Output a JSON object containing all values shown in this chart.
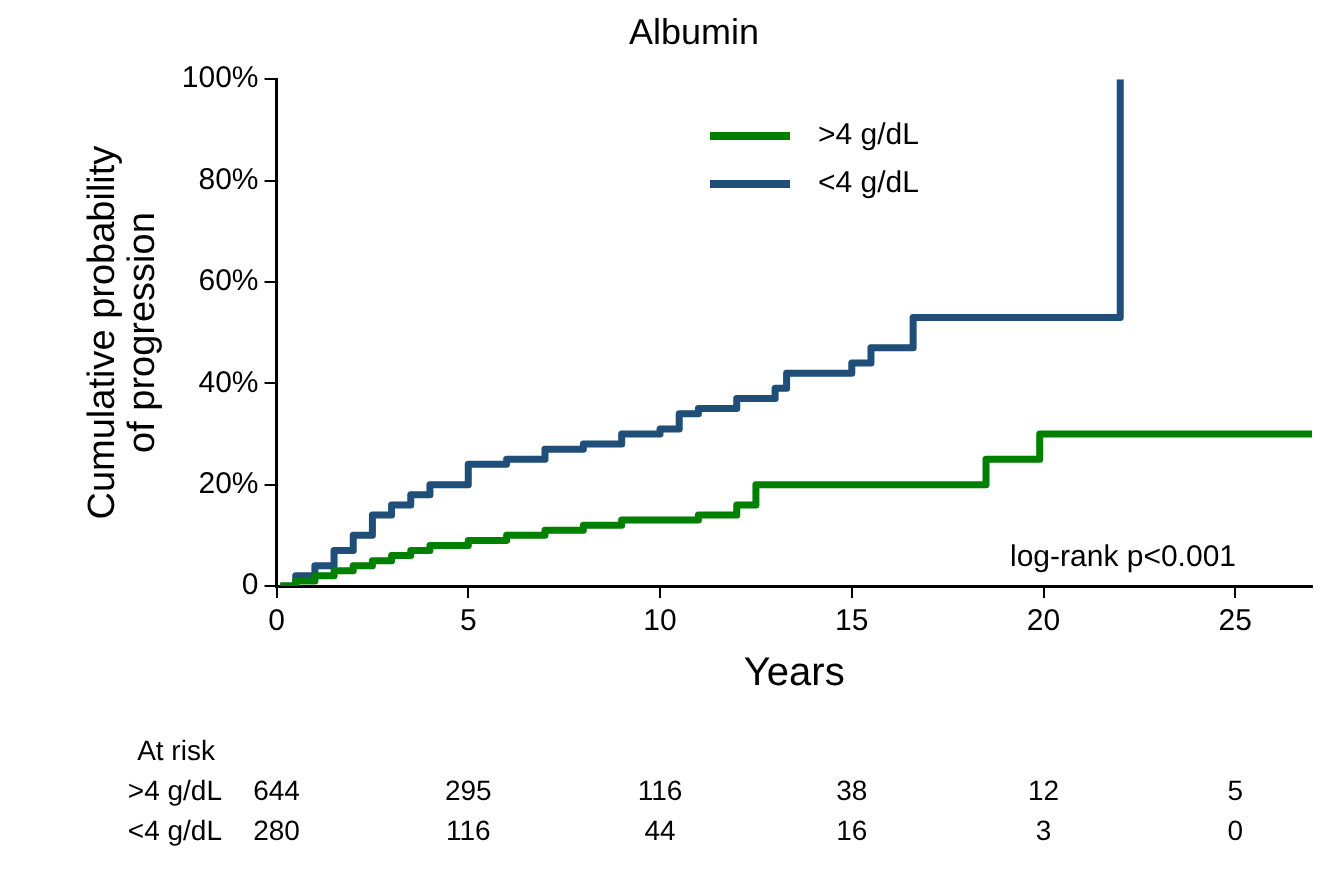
{
  "chart_data": {
    "type": "step",
    "title": "Albumin",
    "xlabel": "Years",
    "ylabel": "Cumulative probability\nof progression",
    "xlim": [
      0,
      27
    ],
    "xticks": [
      0,
      5,
      10,
      15,
      20,
      25
    ],
    "ylim": [
      0,
      100
    ],
    "yticks": [
      {
        "value": 0,
        "label": "0"
      },
      {
        "value": 20,
        "label": "20%"
      },
      {
        "value": 40,
        "label": "40%"
      },
      {
        "value": 60,
        "label": "60%"
      },
      {
        "value": 80,
        "label": "80%"
      },
      {
        "value": 100,
        "label": "100%"
      }
    ],
    "grid": false,
    "legend": "top",
    "marker": "none",
    "line_style": "solid",
    "series": [
      {
        "name": ">4 g/dL",
        "color": "#008000",
        "x": [
          0.1,
          0.5,
          1,
          1.5,
          2,
          2.5,
          3,
          3.5,
          4,
          5,
          6,
          7,
          8,
          9,
          11,
          12,
          12.5,
          18.5,
          19.9,
          27
        ],
        "values": [
          0,
          1,
          2,
          3,
          4,
          5,
          6,
          7,
          8,
          9,
          10,
          11,
          12,
          13,
          14,
          16,
          20,
          25,
          30,
          30
        ]
      },
      {
        "name": "<4 g/dL",
        "color": "#1f4e79",
        "x": [
          0.1,
          0.5,
          1,
          1.5,
          2,
          2.5,
          3,
          3.5,
          4,
          5,
          6,
          7,
          8,
          9,
          10,
          10.5,
          11,
          12,
          13,
          13.3,
          15,
          15.5,
          16.6,
          22,
          22
        ],
        "values": [
          0,
          2,
          4,
          7,
          10,
          14,
          16,
          18,
          20,
          24,
          25,
          27,
          28,
          30,
          31,
          34,
          35,
          37,
          39,
          42,
          44,
          47,
          53,
          53,
          100
        ]
      }
    ],
    "annotations": [
      "log-rank p<0.001",
      "At risk",
      ">4 g/dL",
      "644",
      "295",
      "116",
      "38",
      "12",
      "5",
      "<4 g/dL",
      "280",
      "116",
      "44",
      "16",
      "3",
      "0"
    ]
  }
}
